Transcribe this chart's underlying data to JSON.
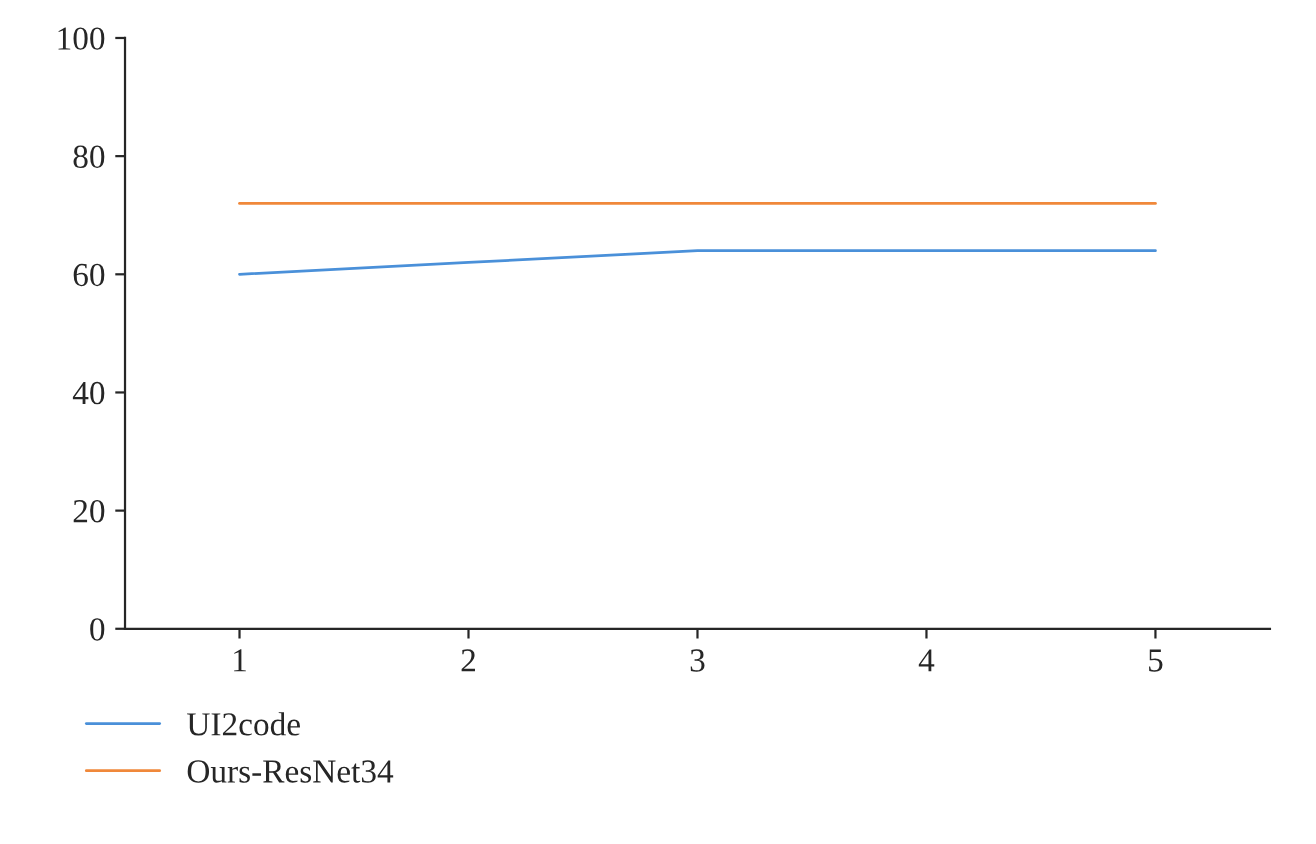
{
  "chart_data": {
    "type": "line",
    "x": [
      1,
      2,
      3,
      4,
      5
    ],
    "series": [
      {
        "name": "UI2code",
        "color": "#4a90d9",
        "values": [
          60,
          62,
          64,
          64,
          64
        ]
      },
      {
        "name": "Ours-ResNet34",
        "color": "#f0883a",
        "values": [
          72,
          72,
          72,
          72,
          72
        ]
      }
    ],
    "xlim": [
      0.5,
      5.5
    ],
    "xticks": [
      1,
      2,
      3,
      4,
      5
    ],
    "ylim": [
      0,
      100
    ],
    "yticks": [
      0,
      20,
      40,
      60,
      80,
      100
    ],
    "grid": false,
    "legend": "bottom",
    "marker": "none",
    "line_style": "solid"
  }
}
